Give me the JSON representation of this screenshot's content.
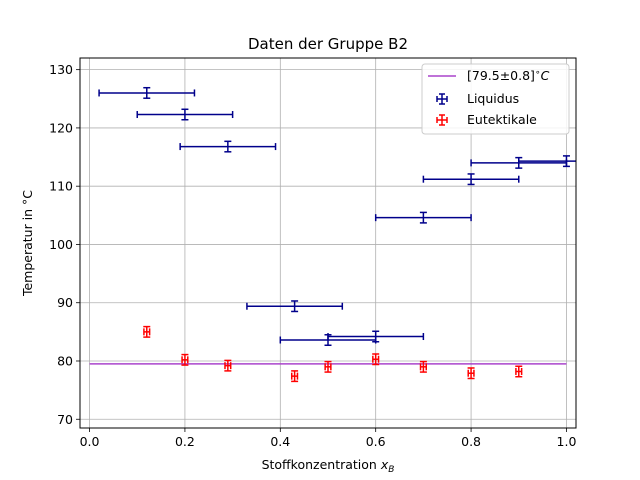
{
  "chart_data": {
    "type": "scatter",
    "title": "Daten der Gruppe B2",
    "xlabel_text": "Stoffkonzentration",
    "xlabel_sub": "B",
    "ylabel": "Temperatur in °C",
    "xlim": [
      -0.02,
      1.02
    ],
    "ylim": [
      68.5,
      132
    ],
    "grid": true,
    "legend_position": "top-right",
    "x_ticks": [
      0.0,
      0.2,
      0.4,
      0.6,
      0.8,
      1.0
    ],
    "x_tick_labels": [
      "0.0",
      "0.2",
      "0.4",
      "0.6",
      "0.8",
      "1.0"
    ],
    "y_ticks": [
      70,
      80,
      90,
      100,
      110,
      120,
      130
    ],
    "y_tick_labels": [
      "70",
      "80",
      "90",
      "100",
      "110",
      "120",
      "130"
    ],
    "reference_line": {
      "label": "[79.5±0.8]°C",
      "label_main": "[79.5±0.8]",
      "label_sup": "∘",
      "label_unit": "C",
      "y": 79.5,
      "x_range": [
        0.0,
        1.0
      ],
      "color": "#aa44cc"
    },
    "series": [
      {
        "name": "Liquidus",
        "color": "#00008b",
        "points": [
          {
            "x": 0.12,
            "y": 126.0,
            "xerr": 0.1,
            "yerr": 0.9
          },
          {
            "x": 0.2,
            "y": 122.3,
            "xerr": 0.1,
            "yerr": 0.9
          },
          {
            "x": 0.29,
            "y": 116.8,
            "xerr": 0.1,
            "yerr": 0.9
          },
          {
            "x": 0.43,
            "y": 89.4,
            "xerr": 0.1,
            "yerr": 0.9
          },
          {
            "x": 0.5,
            "y": 83.6,
            "xerr": 0.1,
            "yerr": 0.9
          },
          {
            "x": 0.6,
            "y": 84.2,
            "xerr": 0.1,
            "yerr": 0.9
          },
          {
            "x": 0.7,
            "y": 104.6,
            "xerr": 0.1,
            "yerr": 0.9
          },
          {
            "x": 0.8,
            "y": 111.2,
            "xerr": 0.1,
            "yerr": 0.9
          },
          {
            "x": 0.9,
            "y": 114.0,
            "xerr": 0.1,
            "yerr": 0.9
          },
          {
            "x": 1.0,
            "y": 114.3,
            "xerr": 0.1,
            "yerr": 0.9
          }
        ]
      },
      {
        "name": "Eutektikale",
        "color": "#ff0000",
        "points": [
          {
            "x": 0.12,
            "y": 85.0,
            "xerr": 0.006,
            "yerr": 0.9
          },
          {
            "x": 0.2,
            "y": 80.2,
            "xerr": 0.006,
            "yerr": 0.9
          },
          {
            "x": 0.29,
            "y": 79.2,
            "xerr": 0.006,
            "yerr": 0.9
          },
          {
            "x": 0.43,
            "y": 77.4,
            "xerr": 0.006,
            "yerr": 0.9
          },
          {
            "x": 0.5,
            "y": 79.0,
            "xerr": 0.006,
            "yerr": 0.9
          },
          {
            "x": 0.6,
            "y": 80.3,
            "xerr": 0.006,
            "yerr": 0.9
          },
          {
            "x": 0.7,
            "y": 79.0,
            "xerr": 0.006,
            "yerr": 0.9
          },
          {
            "x": 0.8,
            "y": 77.9,
            "xerr": 0.006,
            "yerr": 0.9
          },
          {
            "x": 0.9,
            "y": 78.2,
            "xerr": 0.006,
            "yerr": 0.9
          }
        ]
      }
    ]
  }
}
